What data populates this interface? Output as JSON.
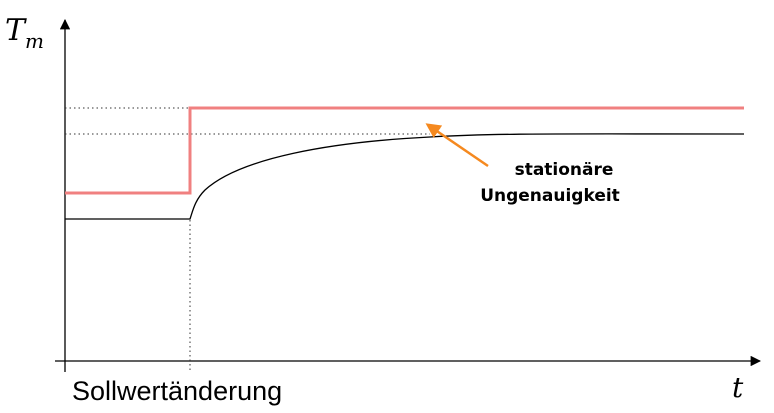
{
  "axes": {
    "y_label": "T",
    "y_label_subscript": "m",
    "x_label": "t"
  },
  "event_label": "Sollwertänderung",
  "annotation": {
    "line1": "stationäre",
    "line2": "Ungenauigkeit"
  },
  "colors": {
    "setpoint_line": "#f08080",
    "response_line": "#000000",
    "arrow": "#f5891f",
    "axis": "#000000",
    "dotted": "#333333"
  }
}
